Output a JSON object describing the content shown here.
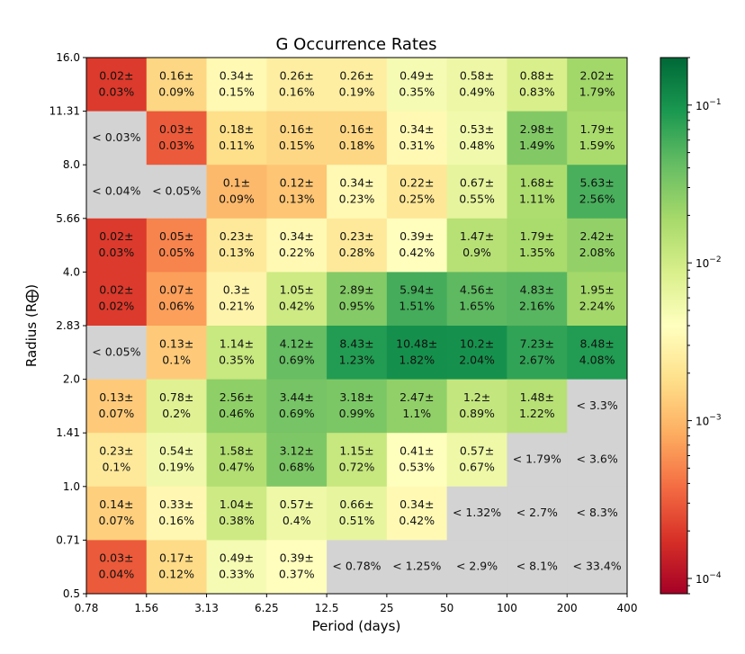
{
  "chart_data": {
    "type": "heatmap",
    "title": "G Occurrence Rates",
    "xlabel": "Period (days)",
    "ylabel": "Radius (R⨁)",
    "x_scale": "log2",
    "y_scale": "log2",
    "x_ticks": [
      "0.78",
      "1.56",
      "3.13",
      "6.25",
      "12.5",
      "25",
      "50",
      "100",
      "200",
      "400"
    ],
    "y_ticks": [
      "0.5",
      "0.71",
      "1.0",
      "1.41",
      "2.0",
      "2.83",
      "4.0",
      "5.66",
      "8.0",
      "11.31",
      "16.0"
    ],
    "colorbar": {
      "scale": "log",
      "colormap": "RdYlGn",
      "range": [
        8e-05,
        0.2
      ],
      "tick_labels": [
        "10^-4",
        "10^-3",
        "10^-2",
        "10^-1"
      ],
      "tick_values": [
        0.0001,
        0.001,
        0.01,
        0.1
      ]
    },
    "missing_color": "#d3d3d3",
    "rows_note": "rows listed from top (radius 11.31-16.0) to bottom (radius 0.5-0.71); columns from period 0.78-1.56 to 200-400",
    "rows": [
      [
        {
          "v": 0.02,
          "e": 0.03
        },
        {
          "v": 0.16,
          "e": 0.09
        },
        {
          "v": 0.34,
          "e": 0.15
        },
        {
          "v": 0.26,
          "e": 0.16
        },
        {
          "v": 0.26,
          "e": 0.19
        },
        {
          "v": 0.49,
          "e": 0.35
        },
        {
          "v": 0.58,
          "e": 0.49
        },
        {
          "v": 0.88,
          "e": 0.83
        },
        {
          "v": 2.02,
          "e": 1.79
        }
      ],
      [
        {
          "ul": 0.03
        },
        {
          "v": 0.03,
          "e": 0.03
        },
        {
          "v": 0.18,
          "e": 0.11
        },
        {
          "v": 0.16,
          "e": 0.15
        },
        {
          "v": 0.16,
          "e": 0.18
        },
        {
          "v": 0.34,
          "e": 0.31
        },
        {
          "v": 0.53,
          "e": 0.48
        },
        {
          "v": 2.98,
          "e": 1.49
        },
        {
          "v": 1.79,
          "e": 1.59
        }
      ],
      [
        {
          "ul": 0.04
        },
        {
          "ul": 0.05
        },
        {
          "v": 0.1,
          "e": 0.09
        },
        {
          "v": 0.12,
          "e": 0.13
        },
        {
          "v": 0.34,
          "e": 0.23
        },
        {
          "v": 0.22,
          "e": 0.25
        },
        {
          "v": 0.67,
          "e": 0.55
        },
        {
          "v": 1.68,
          "e": 1.11
        },
        {
          "v": 5.63,
          "e": 2.56
        }
      ],
      [
        {
          "v": 0.02,
          "e": 0.03
        },
        {
          "v": 0.05,
          "e": 0.05
        },
        {
          "v": 0.23,
          "e": 0.13
        },
        {
          "v": 0.34,
          "e": 0.22
        },
        {
          "v": 0.23,
          "e": 0.28
        },
        {
          "v": 0.39,
          "e": 0.42
        },
        {
          "v": 1.47,
          "e": 0.9
        },
        {
          "v": 1.79,
          "e": 1.35
        },
        {
          "v": 2.42,
          "e": 2.08
        }
      ],
      [
        {
          "v": 0.02,
          "e": 0.02
        },
        {
          "v": 0.07,
          "e": 0.06
        },
        {
          "v": 0.3,
          "e": 0.21
        },
        {
          "v": 1.05,
          "e": 0.42
        },
        {
          "v": 2.89,
          "e": 0.95
        },
        {
          "v": 5.94,
          "e": 1.51
        },
        {
          "v": 4.56,
          "e": 1.65
        },
        {
          "v": 4.83,
          "e": 2.16
        },
        {
          "v": 1.95,
          "e": 2.24
        }
      ],
      [
        {
          "ul": 0.05
        },
        {
          "v": 0.13,
          "e": 0.1
        },
        {
          "v": 1.14,
          "e": 0.35
        },
        {
          "v": 4.12,
          "e": 0.69
        },
        {
          "v": 8.43,
          "e": 1.23
        },
        {
          "v": 10.48,
          "e": 1.82
        },
        {
          "v": 10.2,
          "e": 2.04
        },
        {
          "v": 7.23,
          "e": 2.67
        },
        {
          "v": 8.48,
          "e": 4.08
        }
      ],
      [
        {
          "v": 0.13,
          "e": 0.07
        },
        {
          "v": 0.78,
          "e": 0.2
        },
        {
          "v": 2.56,
          "e": 0.46
        },
        {
          "v": 3.44,
          "e": 0.69
        },
        {
          "v": 3.18,
          "e": 0.99
        },
        {
          "v": 2.47,
          "e": 1.1
        },
        {
          "v": 1.2,
          "e": 0.89
        },
        {
          "v": 1.48,
          "e": 1.22
        },
        {
          "ul": 3.3
        }
      ],
      [
        {
          "v": 0.23,
          "e": 0.1
        },
        {
          "v": 0.54,
          "e": 0.19
        },
        {
          "v": 1.58,
          "e": 0.47
        },
        {
          "v": 3.12,
          "e": 0.68
        },
        {
          "v": 1.15,
          "e": 0.72
        },
        {
          "v": 0.41,
          "e": 0.53
        },
        {
          "v": 0.57,
          "e": 0.67
        },
        {
          "ul": 1.79
        },
        {
          "ul": 3.6
        }
      ],
      [
        {
          "v": 0.14,
          "e": 0.07
        },
        {
          "v": 0.33,
          "e": 0.16
        },
        {
          "v": 1.04,
          "e": 0.38
        },
        {
          "v": 0.57,
          "e": 0.4
        },
        {
          "v": 0.66,
          "e": 0.51
        },
        {
          "v": 0.34,
          "e": 0.42
        },
        {
          "ul": 1.32
        },
        {
          "ul": 2.7
        },
        {
          "ul": 8.3
        }
      ],
      [
        {
          "v": 0.03,
          "e": 0.04
        },
        {
          "v": 0.17,
          "e": 0.12
        },
        {
          "v": 0.49,
          "e": 0.33
        },
        {
          "v": 0.39,
          "e": 0.37
        },
        {
          "ul": 0.78
        },
        {
          "ul": 1.25
        },
        {
          "ul": 2.9
        },
        {
          "ul": 8.1
        },
        {
          "ul": 33.4
        }
      ]
    ]
  }
}
